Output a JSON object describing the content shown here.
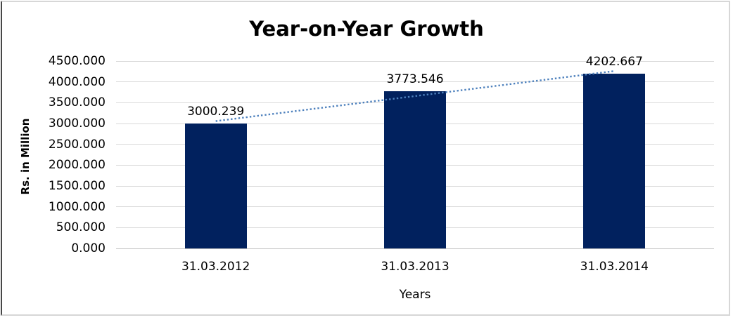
{
  "chart_data": {
    "type": "bar",
    "title": "Year-on-Year Growth",
    "categories": [
      "31.03.2012",
      "31.03.2013",
      "31.03.2014"
    ],
    "values": [
      3000.239,
      3773.546,
      4202.667
    ],
    "data_labels": [
      "3000.239",
      "3773.546",
      "4202.667"
    ],
    "xlabel": "Years",
    "ylabel": "Rs. in Million",
    "ylim": [
      0,
      4500
    ],
    "ytick_step": 500,
    "ytick_labels": [
      "0.000",
      "500.000",
      "1000.000",
      "1500.000",
      "2000.000",
      "2500.000",
      "3000.000",
      "3500.000",
      "4000.000",
      "4500.000"
    ],
    "grid": true,
    "legend": false,
    "trendline": {
      "kind": "linear",
      "line_style": "dotted",
      "color": "#4e81bd"
    },
    "colors": {
      "bar": "#01215e",
      "gridline": "#d9d9d9",
      "axis_line": "#c3c3c3",
      "text": "#000000",
      "frame_border": "#d7d7d7",
      "frame_left_edge": "#474747"
    }
  }
}
